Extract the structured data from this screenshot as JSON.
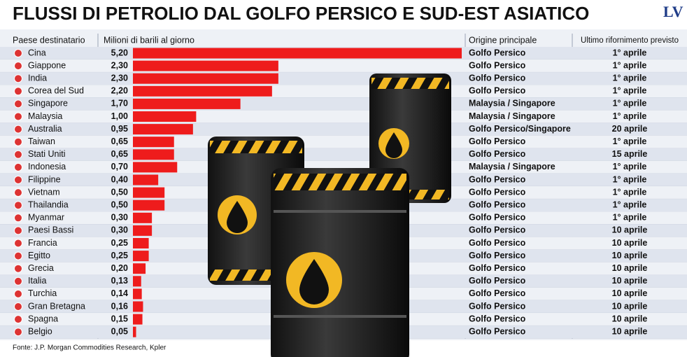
{
  "title": "FLUSSI DI PETROLIO DAL GOLFO PERSICO E SUD-EST ASIATICO",
  "logo": "LV",
  "source": "Fonte: J.P. Morgan Commodities Research, Kpler",
  "chart_data": {
    "type": "bar",
    "orientation": "horizontal",
    "category_header": "Paese destinatario",
    "value_header": "Milioni di barili al giorno",
    "categories": [
      "Cina",
      "Giappone",
      "India",
      "Corea del Sud",
      "Singapore",
      "Malaysia",
      "Australia",
      "Taiwan",
      "Stati Uniti",
      "Indonesia",
      "Filippine",
      "Vietnam",
      "Thailandia",
      "Myanmar",
      "Paesi Bassi",
      "Francia",
      "Egitto",
      "Grecia",
      "Italia",
      "Turchia",
      "Gran Bretagna",
      "Spagna",
      "Belgio"
    ],
    "values": [
      5.2,
      2.3,
      2.3,
      2.2,
      1.7,
      1.0,
      0.95,
      0.65,
      0.65,
      0.7,
      0.4,
      0.5,
      0.5,
      0.3,
      0.3,
      0.25,
      0.25,
      0.2,
      0.13,
      0.14,
      0.16,
      0.15,
      0.05
    ],
    "value_labels": [
      "5,20",
      "2,30",
      "2,30",
      "2,20",
      "1,70",
      "1,00",
      "0,95",
      "0,65",
      "0,65",
      "0,70",
      "0,40",
      "0,50",
      "0,50",
      "0,30",
      "0,30",
      "0,25",
      "0,25",
      "0,20",
      "0,13",
      "0,14",
      "0,16",
      "0,15",
      "0,05"
    ],
    "color": "#ee1c1c",
    "xlim": [
      0,
      5.2
    ]
  },
  "table": {
    "columns": [
      "Origine principale",
      "Ultimo rifornimento previsto"
    ],
    "rows": [
      [
        "Golfo Persico",
        "1° aprile"
      ],
      [
        "Golfo Persico",
        "1° aprile"
      ],
      [
        "Golfo Persico",
        "1° aprile"
      ],
      [
        "Golfo Persico",
        "1° aprile"
      ],
      [
        "Malaysia / Singapore",
        "1° aprile"
      ],
      [
        "Malaysia / Singapore",
        "1° aprile"
      ],
      [
        "Golfo Persico/Singapore",
        "20 aprile"
      ],
      [
        "Golfo Persico",
        "1° aprile"
      ],
      [
        "Golfo Persico",
        "15 aprile"
      ],
      [
        "Malaysia / Singapore",
        "1° aprile"
      ],
      [
        "Golfo Persico",
        "1° aprile"
      ],
      [
        "Golfo Persico",
        "1° aprile"
      ],
      [
        "Golfo Persico",
        "1° aprile"
      ],
      [
        "Golfo Persico",
        "1° aprile"
      ],
      [
        "Golfo Persico",
        "10 aprile"
      ],
      [
        "Golfo Persico",
        "10 aprile"
      ],
      [
        "Golfo Persico",
        "10 aprile"
      ],
      [
        "Golfo Persico",
        "10 aprile"
      ],
      [
        "Golfo Persico",
        "10 aprile"
      ],
      [
        "Golfo Persico",
        "10 aprile"
      ],
      [
        "Golfo Persico",
        "10 aprile"
      ],
      [
        "Golfo Persico",
        "10 aprile"
      ],
      [
        "Golfo Persico",
        "10 aprile"
      ]
    ]
  }
}
